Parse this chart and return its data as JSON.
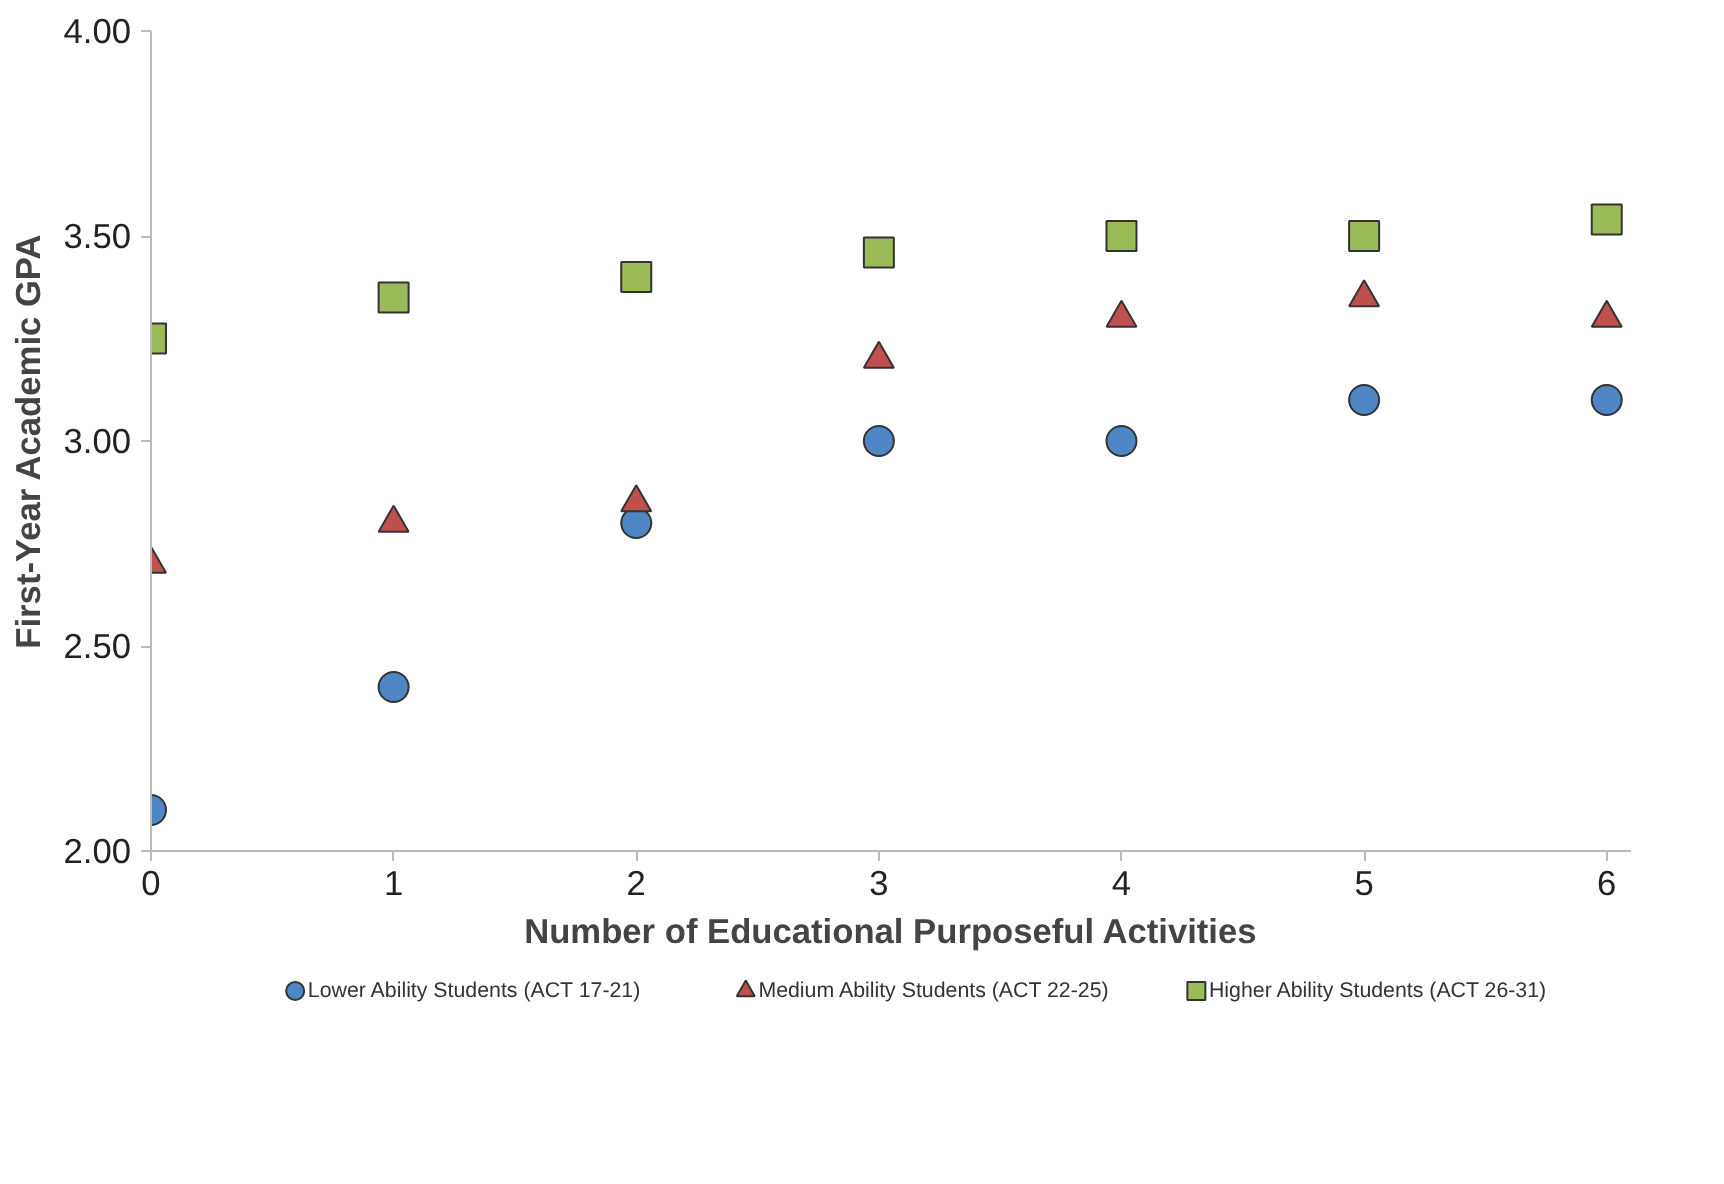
{
  "chart_data": {
    "type": "scatter",
    "xlabel": "Number of Educational Purposeful Activities",
    "ylabel": "First-Year Academic GPA",
    "x": [
      0,
      1,
      2,
      3,
      4,
      5,
      6
    ],
    "series": [
      {
        "name": "Lower Ability Students (ACT 17-21)",
        "color": "#4f86c6",
        "marker": "circle",
        "values": [
          2.1,
          2.4,
          2.8,
          3.0,
          3.0,
          3.1,
          3.1
        ]
      },
      {
        "name": "Medium Ability Students (ACT 22-25)",
        "color": "#c0504d",
        "marker": "triangle",
        "values": [
          2.7,
          2.8,
          2.85,
          3.2,
          3.3,
          3.35,
          3.3
        ]
      },
      {
        "name": "Higher Ability Students (ACT 26-31)",
        "color": "#9bbb59",
        "marker": "square",
        "values": [
          3.25,
          3.35,
          3.4,
          3.46,
          3.5,
          3.5,
          3.54
        ]
      }
    ],
    "xlim": [
      0,
      6.1
    ],
    "ylim": [
      2,
      4
    ],
    "xticks": [
      0,
      1,
      2,
      3,
      4,
      5,
      6
    ],
    "yticks": [
      {
        "value": 2,
        "label": "2.00"
      },
      {
        "value": 2.5,
        "label": "2.50"
      },
      {
        "value": 3,
        "label": "3.00"
      },
      {
        "value": 3.5,
        "label": "3.50"
      },
      {
        "value": 4,
        "label": "4.00"
      }
    ],
    "grid": false,
    "legend": "bottom"
  }
}
